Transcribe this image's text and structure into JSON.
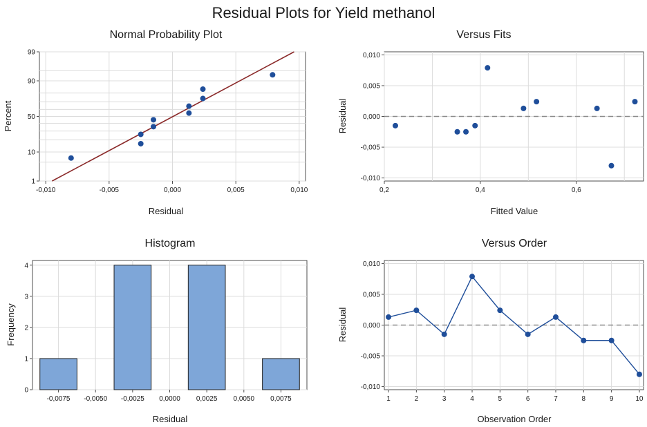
{
  "title": "Residual Plots for Yield methanol",
  "colors": {
    "points": "#1f4e9a",
    "fit_line": "#8b2a2a",
    "bars": "#7ea6d8",
    "bar_edge": "#222222",
    "reference_line": "#8a8a8a"
  },
  "chart_data": [
    {
      "type": "scatter",
      "title": "Normal Probability Plot",
      "xlabel": "Residual",
      "ylabel": "Percent",
      "xlim": [
        -0.0105,
        0.0105
      ],
      "y_scale": "normal-probability",
      "ylim_percent": [
        1,
        99
      ],
      "x_ticks": [
        -0.01,
        -0.005,
        0,
        0.005,
        0.01
      ],
      "x_tick_labels": [
        "-0,010",
        "-0,005",
        "0,000",
        "0,005",
        "0,010"
      ],
      "y_ticks": [
        1,
        10,
        50,
        90,
        99
      ],
      "y_tick_labels": [
        "1",
        "10",
        "50",
        "90",
        "99"
      ],
      "y_grid_percents": [
        1,
        5,
        10,
        20,
        30,
        40,
        50,
        60,
        70,
        80,
        90,
        95,
        99
      ],
      "points": [
        {
          "x": -0.008,
          "y": 6.7
        },
        {
          "x": -0.0025,
          "y": 16.3
        },
        {
          "x": -0.0025,
          "y": 25.9
        },
        {
          "x": -0.0015,
          "y": 35.6
        },
        {
          "x": -0.0015,
          "y": 45.2
        },
        {
          "x": 0.0013,
          "y": 54.8
        },
        {
          "x": 0.0013,
          "y": 64.4
        },
        {
          "x": 0.0024,
          "y": 74.1
        },
        {
          "x": 0.0024,
          "y": 83.7
        },
        {
          "x": 0.0079,
          "y": 93.3
        }
      ],
      "fit_line": {
        "x": [
          -0.0095,
          0.0096
        ],
        "y": [
          1,
          99
        ]
      },
      "grid": true
    },
    {
      "type": "scatter",
      "title": "Versus Fits",
      "xlabel": "Fitted Value",
      "ylabel": "Residual",
      "xlim": [
        0.2,
        0.74
      ],
      "ylim": [
        -0.0105,
        0.0105
      ],
      "x_ticks": [
        0.2,
        0.4,
        0.6
      ],
      "x_tick_labels": [
        "0,2",
        "0,4",
        "0,6"
      ],
      "y_ticks": [
        -0.01,
        -0.005,
        0,
        0.005,
        0.01
      ],
      "y_tick_labels": [
        "-0,010",
        "-0,005",
        "0,000",
        "0,005",
        "0,010"
      ],
      "x_grid": [
        0.3,
        0.5,
        0.7
      ],
      "reference_y": 0,
      "points": [
        {
          "x": 0.223,
          "y": -0.0015
        },
        {
          "x": 0.352,
          "y": -0.0025
        },
        {
          "x": 0.37,
          "y": -0.0025
        },
        {
          "x": 0.389,
          "y": -0.0015
        },
        {
          "x": 0.415,
          "y": 0.0079
        },
        {
          "x": 0.49,
          "y": 0.0013
        },
        {
          "x": 0.517,
          "y": 0.0024
        },
        {
          "x": 0.643,
          "y": 0.0013
        },
        {
          "x": 0.673,
          "y": -0.008
        },
        {
          "x": 0.722,
          "y": 0.0024
        }
      ],
      "grid": true
    },
    {
      "type": "bar",
      "title": "Histogram",
      "xlabel": "Residual",
      "ylabel": "Frequency",
      "xlim": [
        -0.00925,
        0.00925
      ],
      "ylim": [
        0,
        4.15
      ],
      "bin_width": 0.0025,
      "bins": [
        {
          "center": -0.0075,
          "count": 1
        },
        {
          "center": -0.005,
          "count": 0
        },
        {
          "center": -0.0025,
          "count": 4
        },
        {
          "center": 0,
          "count": 0
        },
        {
          "center": 0.0025,
          "count": 4
        },
        {
          "center": 0.005,
          "count": 0
        },
        {
          "center": 0.0075,
          "count": 1
        }
      ],
      "x_ticks": [
        -0.0075,
        -0.005,
        -0.0025,
        0,
        0.0025,
        0.005,
        0.0075
      ],
      "x_tick_labels": [
        "-0,0075",
        "-0,0050",
        "-0,0025",
        "0,0000",
        "0,0025",
        "0,0050",
        "0,0075"
      ],
      "y_ticks": [
        0,
        1,
        2,
        3,
        4
      ],
      "y_tick_labels": [
        "0",
        "1",
        "2",
        "3",
        "4"
      ],
      "grid": true
    },
    {
      "type": "line",
      "title": "Versus Order",
      "xlabel": "Observation Order",
      "ylabel": "Residual",
      "xlim": [
        0.85,
        10.15
      ],
      "ylim": [
        -0.0105,
        0.0105
      ],
      "x_ticks": [
        1,
        2,
        3,
        4,
        5,
        6,
        7,
        8,
        9,
        10
      ],
      "x_tick_labels": [
        "1",
        "2",
        "3",
        "4",
        "5",
        "6",
        "7",
        "8",
        "9",
        "10"
      ],
      "y_ticks": [
        -0.01,
        -0.005,
        0,
        0.005,
        0.01
      ],
      "y_tick_labels": [
        "-0,010",
        "-0,005",
        "0,000",
        "0,005",
        "0,010"
      ],
      "reference_y": 0,
      "x": [
        1,
        2,
        3,
        4,
        5,
        6,
        7,
        8,
        9,
        10
      ],
      "y": [
        0.0013,
        0.0024,
        -0.0015,
        0.0079,
        0.0024,
        -0.0015,
        0.0013,
        -0.0025,
        -0.0025,
        -0.008
      ],
      "grid": true
    }
  ]
}
